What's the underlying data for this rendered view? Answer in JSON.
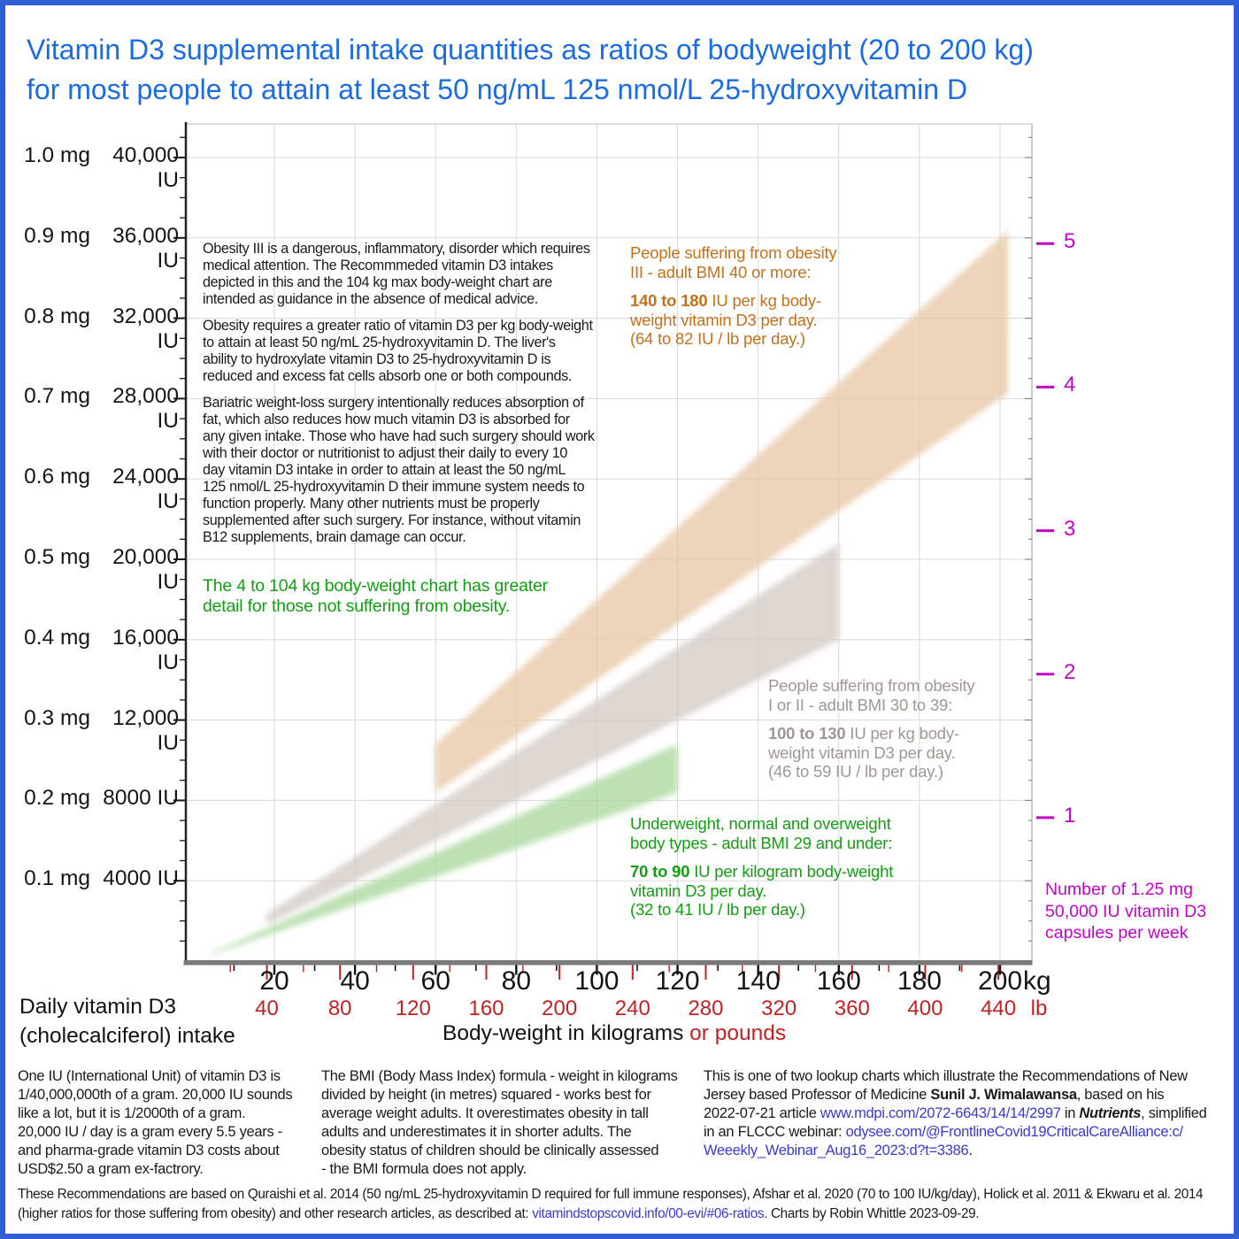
{
  "title": {
    "line1": "Vitamin D3 supplemental intake quantities as ratios of bodyweight (20 to 200 kg)",
    "line2": "for most people to attain at least 50 ng/mL 125 nmol/L 25-hydroxyvitamin D"
  },
  "colors": {
    "frame_blue": "#2f5fd6",
    "title_blue": "#1b6ce4",
    "orange_text": "#c4711c",
    "gray_text": "#9e9892",
    "green_text": "#11a011",
    "magenta": "#c303cb",
    "red_pounds": "#c12222",
    "link_blue": "#3939d2",
    "band_orange": "#e9c9a9",
    "band_gray": "#d4ccc6",
    "band_green": "#add9a0"
  },
  "notes": {
    "paragraphs": [
      [
        "Obesity III is a dangerous, inflammatory, disorder which requires",
        "medical attention.  The Recommmeded vitamin D3 intakes",
        "depicted in this and the 104 kg max body-weight chart are",
        "intended as guidance in the absence of medical advice."
      ],
      [
        "Obesity requires a greater ratio of vitamin D3 per kg body-weight",
        "to attain at least 50 ng/mL 25-hydroxyvitamin D.  The liver's",
        "ability to hydroxylate vitamin D3 to 25-hydroxyvitamin D is",
        "reduced and excess fat cells absorb one or both compounds."
      ],
      [
        "Bariatric weight-loss surgery intentionally reduces absorption of",
        "fat, which also reduces how much vitamin D3 is absorbed for",
        "any given intake.  Those who have had such surgery should work",
        "with their doctor or nutritionist to adjust their daily to every 10",
        "day vitamin D3 intake in order to attain at least the 50 ng/mL",
        "125 nmol/L 25-hydroxyvitamin D their immune system needs to",
        "function properly.  Many other nutrients must be properly",
        "supplemented after such surgery.  For instance, without vitamin",
        "B12 supplements, brain damage can occur."
      ]
    ],
    "green_note": [
      "The 4 to 104 kg body-weight chart has greater",
      "detail for those not suffering from obesity."
    ]
  },
  "recs": {
    "obesity3": {
      "intro": [
        "People suffering from obesity",
        "III - adult BMI 40 or more:"
      ],
      "range": "140 to 180",
      "range_rest": " IU per kg body-",
      "lines": [
        "weight vitamin D3 per day.",
        "(64 to 82 IU / lb per day.)"
      ]
    },
    "obesity12": {
      "intro": [
        "People suffering from obesity",
        "I or II - adult BMI 30 to 39:"
      ],
      "range": "100 to 130",
      "range_rest": " IU per kg body-",
      "lines": [
        "weight vitamin D3 per day.",
        "(46 to 59 IU / lb per day.)"
      ]
    },
    "normal": {
      "intro": [
        "Underweight, normal and overweight",
        "body types - adult BMI 29 and under:"
      ],
      "range": "70 to 90",
      "range_rest": " IU per kilogram body-weight",
      "lines": [
        "vitamin D3 per day.",
        "(32 to 41 IU / lb per day.)"
      ]
    }
  },
  "right_axis": {
    "caption_lines": [
      "Number of 1.25 mg",
      "50,000 IU vitamin D3",
      "capsules per week"
    ]
  },
  "x_axis": {
    "unit_kg": "kg",
    "unit_lb": "lb",
    "title_black": "Body-weight in kilograms ",
    "title_red": "or pounds"
  },
  "left_axis_title": {
    "line1": "Daily vitamin D3",
    "line2": "(cholecalciferol) intake"
  },
  "footer": {
    "col1": [
      "One IU (International Unit) of vitamin D3 is",
      "1/40,000,000th of a gram.  20,000 IU sounds",
      "like a lot, but it is 1/2000th of a gram.",
      "20,000 IU / day is a gram every 5.5 years -",
      "and pharma-grade vitamin D3 costs about",
      "USD$2.50 a gram ex-factrory."
    ],
    "col2": [
      "The BMI (Body Mass Index) formula - weight in kilograms",
      "divided by height (in metres) squared - works best for",
      "average weight adults.  It overestimates obesity in tall",
      "adults and underestimates it in shorter adults.  The",
      "obesity status of children should be clinically assessed",
      "- the BMI formula does not apply."
    ],
    "credit": {
      "l1": "This is one of two lookup charts which illustrate the Recommendations of New",
      "l2a": "Jersey based Professor of Medicine ",
      "l2b": "Sunil J. Wimalawansa",
      "l2c": ", based on his",
      "l3a": "2022-07-21 article ",
      "l3b": "www.mdpi.com/2072-6643/14/14/2997",
      "l3c": " in ",
      "l3d": "Nutrients",
      "l3e": ", simplified",
      "l4a": "in an FLCCC webinar: ",
      "l4b": "odysee.com/@FrontlineCovid19CriticalCareAlliance:c/",
      "l5a": "Weeekly_Webinar_Aug16_2023:d?t=3386",
      "l5b": "."
    },
    "refs": {
      "l1": "These Recommendations are based on Quraishi et al. 2014 (50 ng/mL 25-hydroxyvitamin D required for full immune responses), Afshar et al. 2020 (70 to 100 IU/kg/day), Holick et al. 2011 & Ekwaru et al. 2014",
      "l2a": "(higher ratios for those suffering from obesity) and other research articles, as described at: ",
      "l2b": "vitamindstopscovid.info/00-evi/#06-ratios",
      "l2c": ".   Charts by Robin Whittle 2023-09-29."
    }
  },
  "chart_data": {
    "type": "area",
    "title": "Vitamin D3 supplemental intake quantities as ratios of bodyweight (20 to 200 kg) for most people to attain at least 50 ng/mL 125 nmol/L 25-hydroxyvitamin D",
    "xlabel": "Body-weight in kilograms or pounds",
    "ylabel": "Daily vitamin D3 (cholecalciferol) intake",
    "grid": true,
    "x_range_kg": [
      0,
      208
    ],
    "y_range_iu": [
      0,
      41600
    ],
    "x_ticks_kg": [
      20,
      40,
      60,
      80,
      100,
      120,
      140,
      160,
      180,
      200
    ],
    "x_ticks_lb": [
      40,
      80,
      120,
      160,
      200,
      240,
      280,
      320,
      360,
      400,
      440
    ],
    "y_ticks_iu": [
      4000,
      8000,
      12000,
      16000,
      20000,
      24000,
      28000,
      32000,
      36000,
      40000
    ],
    "y_ticks_mg": [
      0.1,
      0.2,
      0.3,
      0.4,
      0.5,
      0.6,
      0.7,
      0.8,
      0.9,
      1.0
    ],
    "right_ticks_capsules_per_week": [
      1,
      2,
      3,
      4,
      5
    ],
    "capsule_iu": 50000,
    "series": [
      {
        "id": "obesity-3",
        "name": "Obesity III - adult BMI 40 or more: 140 to 180 IU per kg body-weight per day (64 to 82 IU/lb)",
        "kg_range": [
          60,
          202
        ],
        "iu_per_kg": [
          140,
          180
        ],
        "color": "#e9c9a9"
      },
      {
        "id": "obesity-1-2",
        "name": "Obesity I or II - adult BMI 30 to 39: 100 to 130 IU per kg body-weight per day (46 to 59 IU/lb)",
        "kg_range": [
          18,
          160
        ],
        "iu_per_kg": [
          100,
          130
        ],
        "color": "#d4ccc6"
      },
      {
        "id": "bmi-29-under",
        "name": "Underweight, normal and overweight - adult BMI 29 and under: 70 to 90 IU per kg body-weight per day (32 to 41 IU/lb)",
        "kg_range": [
          4,
          120
        ],
        "iu_per_kg": [
          70,
          90
        ],
        "color": "#add9a0"
      }
    ]
  }
}
